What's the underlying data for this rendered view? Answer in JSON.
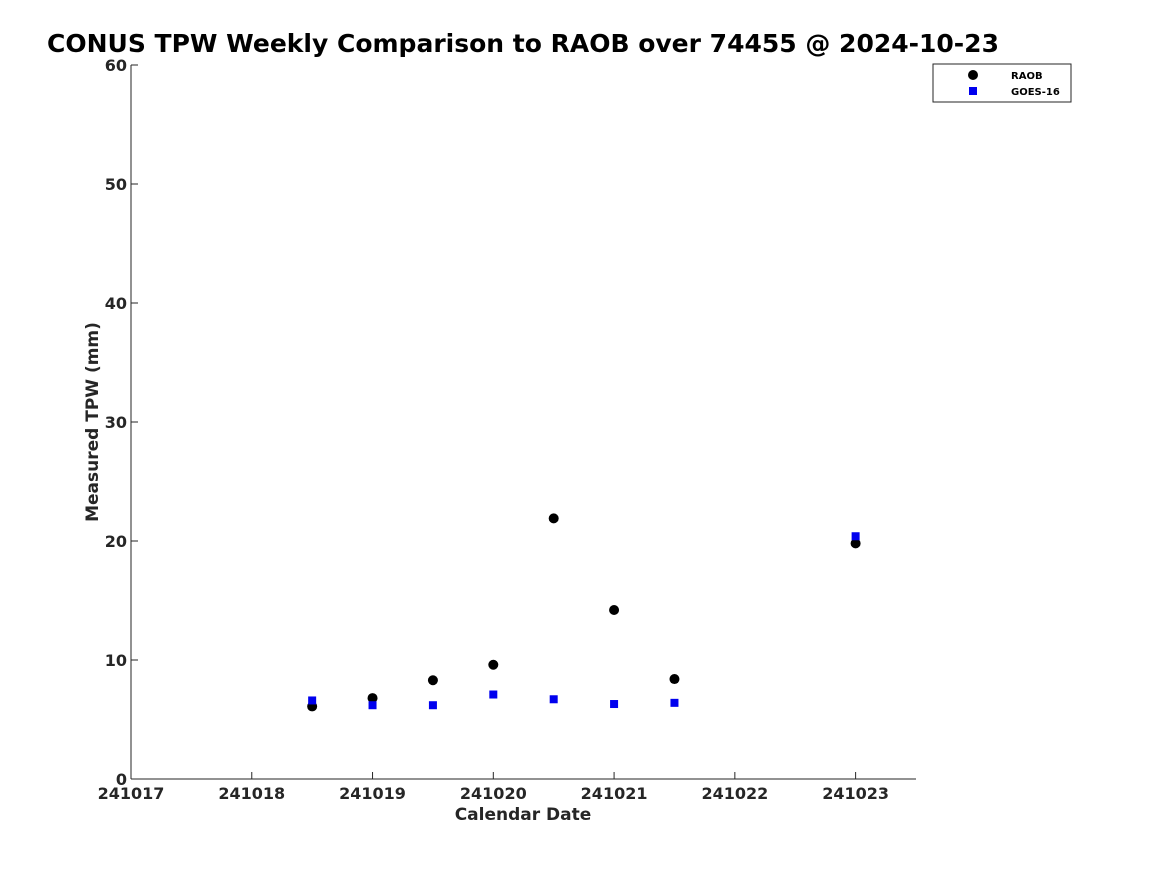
{
  "chart_data": {
    "type": "scatter",
    "title": "CONUS TPW Weekly Comparison to RAOB over 74455 @ 2024-10-23",
    "xlabel": "Calendar Date",
    "ylabel": "Measured TPW (mm)",
    "xlim": [
      241017,
      241023.5
    ],
    "ylim": [
      0,
      60
    ],
    "xticks": [
      241017,
      241018,
      241019,
      241020,
      241021,
      241022,
      241023
    ],
    "xtick_labels": [
      "241017",
      "241018",
      "241019",
      "241020",
      "241021",
      "241022",
      "241023"
    ],
    "yticks": [
      0,
      10,
      20,
      30,
      40,
      50,
      60
    ],
    "ytick_labels": [
      "0",
      "10",
      "20",
      "30",
      "40",
      "50",
      "60"
    ],
    "grid": false,
    "legend_position": "top-right",
    "series": [
      {
        "name": "RAOB",
        "marker": "circle",
        "color": "#000000",
        "x": [
          241018.5,
          241019,
          241019.5,
          241020,
          241020.5,
          241021,
          241021.5,
          241023
        ],
        "y": [
          6.1,
          6.8,
          8.3,
          9.6,
          21.9,
          14.2,
          8.4,
          19.8
        ]
      },
      {
        "name": "GOES-16",
        "marker": "square",
        "color": "#0000ee",
        "x": [
          241018.5,
          241019,
          241019.5,
          241020,
          241020.5,
          241021,
          241021.5,
          241023
        ],
        "y": [
          6.6,
          6.2,
          6.2,
          7.1,
          6.7,
          6.3,
          6.4,
          20.4
        ]
      }
    ]
  }
}
